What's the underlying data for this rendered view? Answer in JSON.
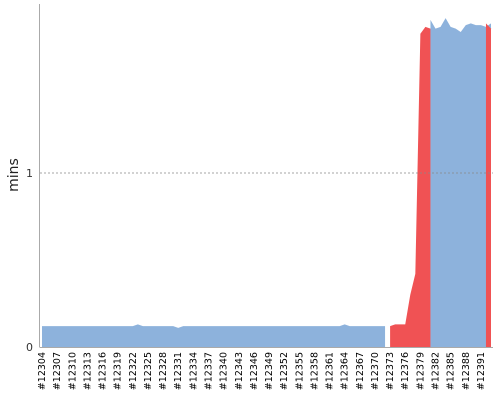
{
  "chart_data": {
    "type": "area",
    "ylabel": "mins",
    "ylim": [
      0,
      2
    ],
    "yticks": [
      "0",
      "1"
    ],
    "grid": "dotted line at y=1",
    "colors": {
      "pass": "#8db2dc",
      "fail": "#f05254",
      "grid": "#888888",
      "axis": "#aaaaaa"
    },
    "x_tick_labels": [
      "#12304",
      "#12307",
      "#12310",
      "#12313",
      "#12316",
      "#12319",
      "#12322",
      "#12325",
      "#12328",
      "#12331",
      "#12334",
      "#12337",
      "#12340",
      "#12343",
      "#12346",
      "#12349",
      "#12352",
      "#12355",
      "#12358",
      "#12361",
      "#12364",
      "#12367",
      "#12370",
      "#12373",
      "#12376",
      "#12379",
      "#12382",
      "#12385",
      "#12388",
      "#12391"
    ],
    "x_start": 12304,
    "x_end": 12393,
    "series": [
      {
        "status": "pass",
        "values": [
          0.12,
          0.12,
          0.12,
          0.12,
          0.12,
          0.12,
          0.12,
          0.12,
          0.12,
          0.12,
          0.12,
          0.12,
          0.12,
          0.12,
          0.12,
          0.12,
          0.12,
          0.12,
          0.12,
          0.13,
          0.12,
          0.12,
          0.12,
          0.12,
          0.12,
          0.12,
          0.12,
          0.11,
          0.12,
          0.12,
          0.12,
          0.12,
          0.12,
          0.12,
          0.12,
          0.12,
          0.12,
          0.12,
          0.12,
          0.12,
          0.12,
          0.12,
          0.12,
          0.12,
          0.12,
          0.12,
          0.12,
          0.12,
          0.12,
          0.12,
          0.12,
          0.12,
          0.12,
          0.12,
          0.12,
          0.12,
          0.12,
          0.12,
          0.12,
          0.12,
          0.13,
          0.12,
          0.12,
          0.12,
          0.12,
          0.12,
          0.12,
          0.12,
          0.12,
          null,
          null,
          null,
          null,
          null,
          null,
          null,
          null,
          1.88,
          1.83,
          1.84,
          1.89,
          1.84,
          1.83,
          1.81,
          1.85,
          1.86,
          1.85,
          1.85,
          1.84,
          1.86
        ]
      },
      {
        "status": "fail",
        "values": [
          null,
          null,
          null,
          null,
          null,
          null,
          null,
          null,
          null,
          null,
          null,
          null,
          null,
          null,
          null,
          null,
          null,
          null,
          null,
          null,
          null,
          null,
          null,
          null,
          null,
          null,
          null,
          null,
          null,
          null,
          null,
          null,
          null,
          null,
          null,
          null,
          null,
          null,
          null,
          null,
          null,
          null,
          null,
          null,
          null,
          null,
          null,
          null,
          null,
          null,
          null,
          null,
          null,
          null,
          null,
          null,
          null,
          null,
          null,
          null,
          null,
          null,
          null,
          null,
          null,
          null,
          null,
          null,
          null,
          0.12,
          0.13,
          0.13,
          0.13,
          0.3,
          0.42,
          1.8,
          1.84,
          1.83,
          null,
          null,
          null,
          null,
          null,
          null,
          null,
          null,
          null,
          null,
          1.86,
          1.83
        ]
      }
    ]
  }
}
